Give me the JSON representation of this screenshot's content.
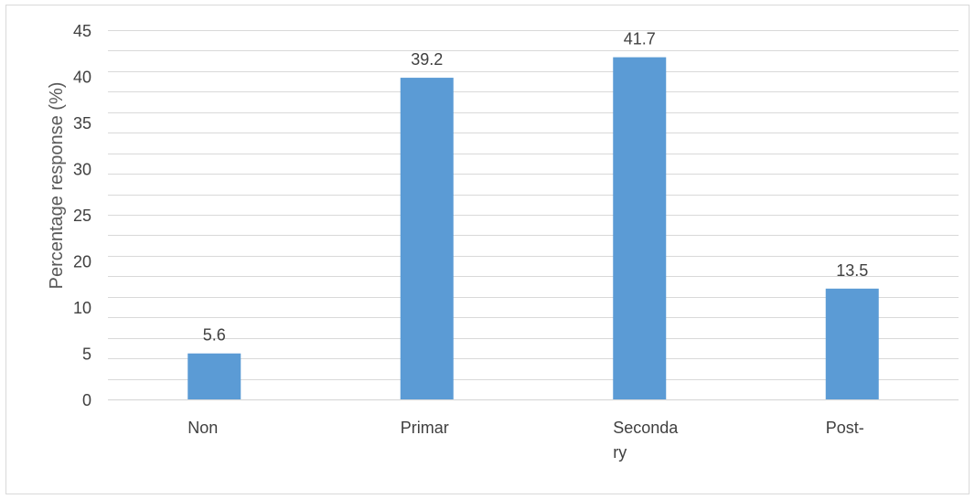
{
  "chart_data": {
    "type": "bar",
    "title": "",
    "xlabel": "",
    "ylabel": "Percentage response (%)",
    "categories": [
      [
        "Non"
      ],
      [
        "Primar"
      ],
      [
        "Seconda",
        "ry"
      ],
      [
        "Post-"
      ]
    ],
    "values": [
      5.6,
      39.2,
      41.7,
      13.5
    ],
    "data_labels": [
      "5.6",
      "39.2",
      "41.7",
      "13.5"
    ],
    "y_ticks": [
      "0",
      "5",
      "10",
      "20",
      "25",
      "30",
      "35",
      "40",
      "45"
    ],
    "grid": true,
    "bar_color": "#5b9bd5",
    "grid_color": "#d9d9d9"
  }
}
